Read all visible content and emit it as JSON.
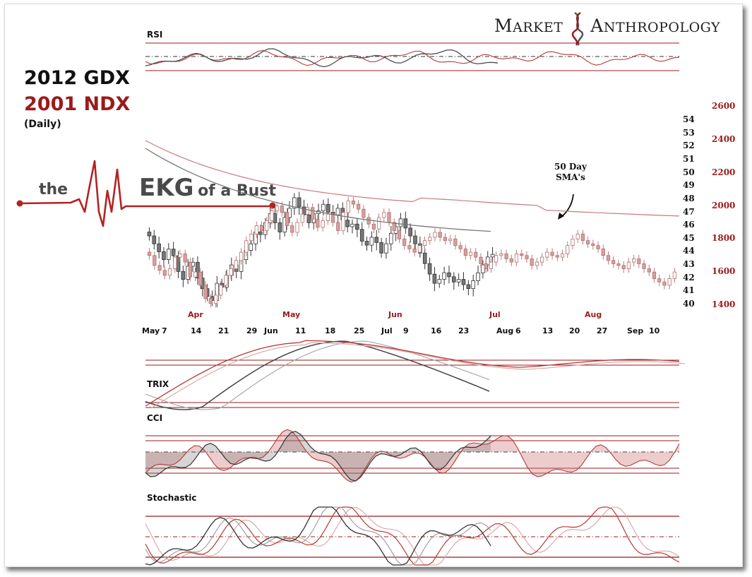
{
  "title": {
    "line1": "2012 GDX",
    "line2": "2001 NDX",
    "line3": "(Daily)"
  },
  "brand": {
    "word1_initial": "M",
    "word1_rest": "ARKET",
    "word2_initial": "A",
    "word2_rest": "NTHROPOLOGY"
  },
  "ekg": {
    "left": "the",
    "right_big": "EKG",
    "right_rest": "of a Bust"
  },
  "annotation": {
    "line1": "50 Day",
    "line2": "SMA's"
  },
  "panels": {
    "rsi": "RSI",
    "trix": "TRIX",
    "cci": "CCI",
    "stochastic": "Stochastic"
  },
  "colors": {
    "gdx": "#4d4d4d",
    "ndx": "#b53a3a",
    "ndx_light": "#d9a3a3",
    "gdx_light": "#9a9a9a",
    "accent": "#9b1b1b"
  },
  "chart_data": {
    "type": "line",
    "series": [
      {
        "name": "2012 GDX"
      },
      {
        "name": "2001 NDX"
      }
    ],
    "y_left_ticks": [
      "54",
      "53",
      "52",
      "51",
      "50",
      "49",
      "48",
      "47",
      "46",
      "45",
      "44",
      "43",
      "42",
      "41",
      "40"
    ],
    "y_right_ticks": [
      "2600",
      "2400",
      "2200",
      "2000",
      "1800",
      "1600",
      "1400"
    ],
    "ylim_left": [
      40,
      54
    ],
    "months_2001": [
      "Apr",
      "May",
      "Jun",
      "Jul",
      "Aug"
    ],
    "days_2012": [
      "May",
      "7",
      "14",
      "21",
      "29",
      "Jun",
      "11",
      "18",
      "25",
      "Jul",
      "9",
      "16",
      "23",
      "Aug",
      "6",
      "13",
      "20",
      "27",
      "Sep",
      "10"
    ],
    "gdx_close": [
      45.2,
      44.6,
      44.0,
      43.4,
      44.2,
      43.7,
      42.5,
      41.9,
      42.9,
      43.2,
      42.0,
      41.2,
      40.6,
      40.3,
      41.6,
      41.3,
      42.2,
      43.0,
      42.5,
      43.4,
      44.1,
      44.6,
      45.5,
      45.3,
      46.2,
      46.9,
      46.2,
      45.5,
      46.6,
      47.3,
      48.1,
      47.4,
      46.8,
      46.2,
      46.9,
      47.1,
      47.6,
      47.0,
      46.8,
      47.3,
      46.4,
      45.9,
      46.1,
      45.7,
      44.8,
      44.5,
      45.1,
      44.7,
      43.9,
      44.6,
      45.4,
      45.9,
      46.5,
      45.8,
      45.2,
      44.6,
      43.9,
      43.1,
      42.3,
      41.6,
      41.9,
      42.4,
      42.1,
      41.7,
      41.9,
      41.5,
      41.2,
      41.8,
      42.4,
      43.0,
      43.6,
      43.8
    ],
    "ndx_close": [
      1700,
      1640,
      1610,
      1580,
      1620,
      1690,
      1710,
      1660,
      1570,
      1600,
      1520,
      1440,
      1410,
      1460,
      1520,
      1580,
      1620,
      1670,
      1720,
      1790,
      1830,
      1880,
      1850,
      1910,
      1970,
      2000,
      1960,
      1880,
      1840,
      1900,
      1950,
      1990,
      1920,
      1870,
      1910,
      1950,
      1900,
      1850,
      1960,
      2030,
      2010,
      1980,
      1930,
      1890,
      1860,
      1930,
      1960,
      1900,
      1850,
      1800,
      1760,
      1740,
      1720,
      1760,
      1790,
      1810,
      1840,
      1810,
      1790,
      1800,
      1760,
      1740,
      1700,
      1720,
      1690,
      1650,
      1620,
      1660,
      1700,
      1710,
      1680,
      1660,
      1710,
      1700,
      1680,
      1640,
      1660,
      1690,
      1720,
      1700,
      1690,
      1710,
      1760,
      1800,
      1830,
      1790,
      1770,
      1760,
      1740,
      1700,
      1670,
      1650,
      1640,
      1620,
      1660,
      1680,
      1650,
      1620,
      1600,
      1560,
      1540,
      1520,
      1560,
      1600
    ]
  }
}
